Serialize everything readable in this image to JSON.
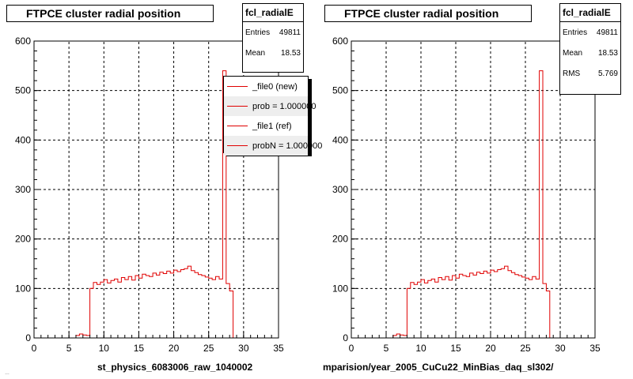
{
  "footer_note": "…",
  "colors": {
    "hist": "#e00000",
    "grid": "#000000",
    "axis": "#000000"
  },
  "chart_data": [
    {
      "type": "line",
      "title": "FTPCE cluster radial position",
      "xlabel": "st_physics_6083006_raw_1040002",
      "xlim": [
        0,
        35
      ],
      "ylim": [
        0,
        600
      ],
      "x_ticks": [
        "0",
        "5",
        "10",
        "15",
        "20",
        "25",
        "30",
        "35"
      ],
      "y_ticks": [
        "0",
        "100",
        "200",
        "300",
        "400",
        "500",
        "600"
      ],
      "grid": true,
      "stats": {
        "name": "fcl_radialE",
        "rows": [
          {
            "label": "Entries",
            "value": "49811"
          },
          {
            "label": "Mean",
            "value": "18.53"
          }
        ]
      },
      "legend": {
        "placement": "top-right",
        "entries": [
          "_file0 (new)",
          "prob = 1.000000",
          "_file1 (ref)",
          "probN = 1.000000"
        ]
      },
      "series": [
        {
          "name": "_file0 (new)",
          "x": [
            0,
            0.5,
            1,
            1.5,
            2,
            2.5,
            3,
            3.5,
            4,
            4.5,
            5,
            5.5,
            6,
            6.5,
            7,
            7.5,
            8,
            8.5,
            9,
            9.5,
            10,
            10.5,
            11,
            11.5,
            12,
            12.5,
            13,
            13.5,
            14,
            14.5,
            15,
            15.5,
            16,
            16.5,
            17,
            17.5,
            18,
            18.5,
            19,
            19.5,
            20,
            20.5,
            21,
            21.5,
            22,
            22.5,
            23,
            23.5,
            24,
            24.5,
            25,
            25.5,
            26,
            26.5,
            27,
            27.5,
            28,
            28.5,
            29,
            29.5,
            30,
            30.5,
            31,
            31.5,
            32,
            32.5,
            33,
            33.5,
            34,
            34.5,
            35
          ],
          "values": [
            0,
            0,
            0,
            0,
            0,
            0,
            0,
            0,
            0,
            0,
            0,
            0,
            5,
            8,
            6,
            5,
            100,
            112,
            108,
            113,
            118,
            111,
            116,
            119,
            113,
            122,
            118,
            124,
            117,
            126,
            121,
            129,
            126,
            124,
            131,
            127,
            133,
            130,
            135,
            131,
            137,
            134,
            138,
            140,
            145,
            136,
            132,
            128,
            126,
            123,
            121,
            118,
            124,
            119,
            540,
            110,
            95,
            0,
            0,
            0,
            0,
            0,
            0,
            0,
            0,
            0,
            0,
            0,
            0,
            0,
            0
          ]
        }
      ]
    },
    {
      "type": "line",
      "title": "FTPCE cluster radial position",
      "xlabel": "mparision/year_2005_CuCu22_MinBias_daq_sl302/",
      "xlim": [
        0,
        35
      ],
      "ylim": [
        0,
        600
      ],
      "x_ticks": [
        "0",
        "5",
        "10",
        "15",
        "20",
        "25",
        "30",
        "35"
      ],
      "y_ticks": [
        "0",
        "100",
        "200",
        "300",
        "400",
        "500",
        "600"
      ],
      "grid": true,
      "stats": {
        "name": "fcl_radialE",
        "rows": [
          {
            "label": "Entries",
            "value": "49811"
          },
          {
            "label": "Mean",
            "value": "18.53"
          },
          {
            "label": "RMS",
            "value": "5.769"
          }
        ]
      },
      "series": [
        {
          "x": [
            0,
            0.5,
            1,
            1.5,
            2,
            2.5,
            3,
            3.5,
            4,
            4.5,
            5,
            5.5,
            6,
            6.5,
            7,
            7.5,
            8,
            8.5,
            9,
            9.5,
            10,
            10.5,
            11,
            11.5,
            12,
            12.5,
            13,
            13.5,
            14,
            14.5,
            15,
            15.5,
            16,
            16.5,
            17,
            17.5,
            18,
            18.5,
            19,
            19.5,
            20,
            20.5,
            21,
            21.5,
            22,
            22.5,
            23,
            23.5,
            24,
            24.5,
            25,
            25.5,
            26,
            26.5,
            27,
            27.5,
            28,
            28.5,
            29,
            29.5,
            30,
            30.5,
            31,
            31.5,
            32,
            32.5,
            33,
            33.5,
            34,
            34.5,
            35
          ],
          "values": [
            0,
            0,
            0,
            0,
            0,
            0,
            0,
            0,
            0,
            0,
            0,
            0,
            5,
            8,
            6,
            5,
            100,
            112,
            108,
            113,
            118,
            111,
            116,
            119,
            113,
            122,
            118,
            124,
            117,
            126,
            121,
            129,
            126,
            124,
            131,
            127,
            133,
            130,
            135,
            131,
            137,
            134,
            138,
            140,
            145,
            136,
            132,
            128,
            126,
            123,
            121,
            118,
            124,
            119,
            540,
            110,
            95,
            0,
            0,
            0,
            0,
            0,
            0,
            0,
            0,
            0,
            0,
            0,
            0,
            0,
            0
          ]
        }
      ]
    }
  ]
}
